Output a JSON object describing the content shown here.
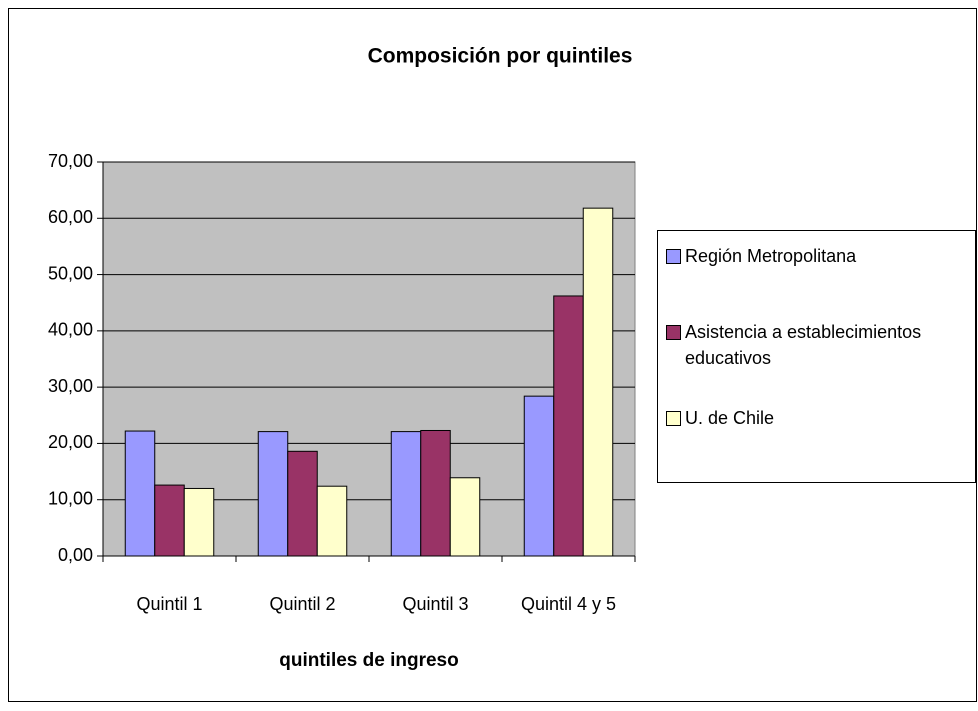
{
  "chart_data": {
    "type": "bar",
    "title": "Composición por quintiles",
    "x_label": "quintiles de ingreso",
    "categories": [
      "Quintil 1",
      "Quintil 2",
      "Quintil 3",
      "Quintil 4 y 5"
    ],
    "series": [
      {
        "name": "Región Metropolitana",
        "color": "#9999ff",
        "values": [
          22.2,
          22.1,
          22.1,
          28.4
        ]
      },
      {
        "name": "Asistencia a establecimientos educativos",
        "color": "#993366",
        "values": [
          12.6,
          18.6,
          22.3,
          46.2
        ]
      },
      {
        "name": "U. de Chile",
        "color": "#ffffcc",
        "values": [
          12.0,
          12.4,
          13.9,
          61.8
        ]
      }
    ],
    "ylim": [
      0,
      70
    ],
    "yticks": [
      {
        "value": 0,
        "label": "0,00"
      },
      {
        "value": 10,
        "label": "10,00"
      },
      {
        "value": 20,
        "label": "20,00"
      },
      {
        "value": 30,
        "label": "30,00"
      },
      {
        "value": 40,
        "label": "40,00"
      },
      {
        "value": 50,
        "label": "50,00"
      },
      {
        "value": 60,
        "label": "60,00"
      },
      {
        "value": 70,
        "label": "70,00"
      }
    ],
    "grid": true,
    "plot_background": "#c0c0c0",
    "legend": "right"
  }
}
